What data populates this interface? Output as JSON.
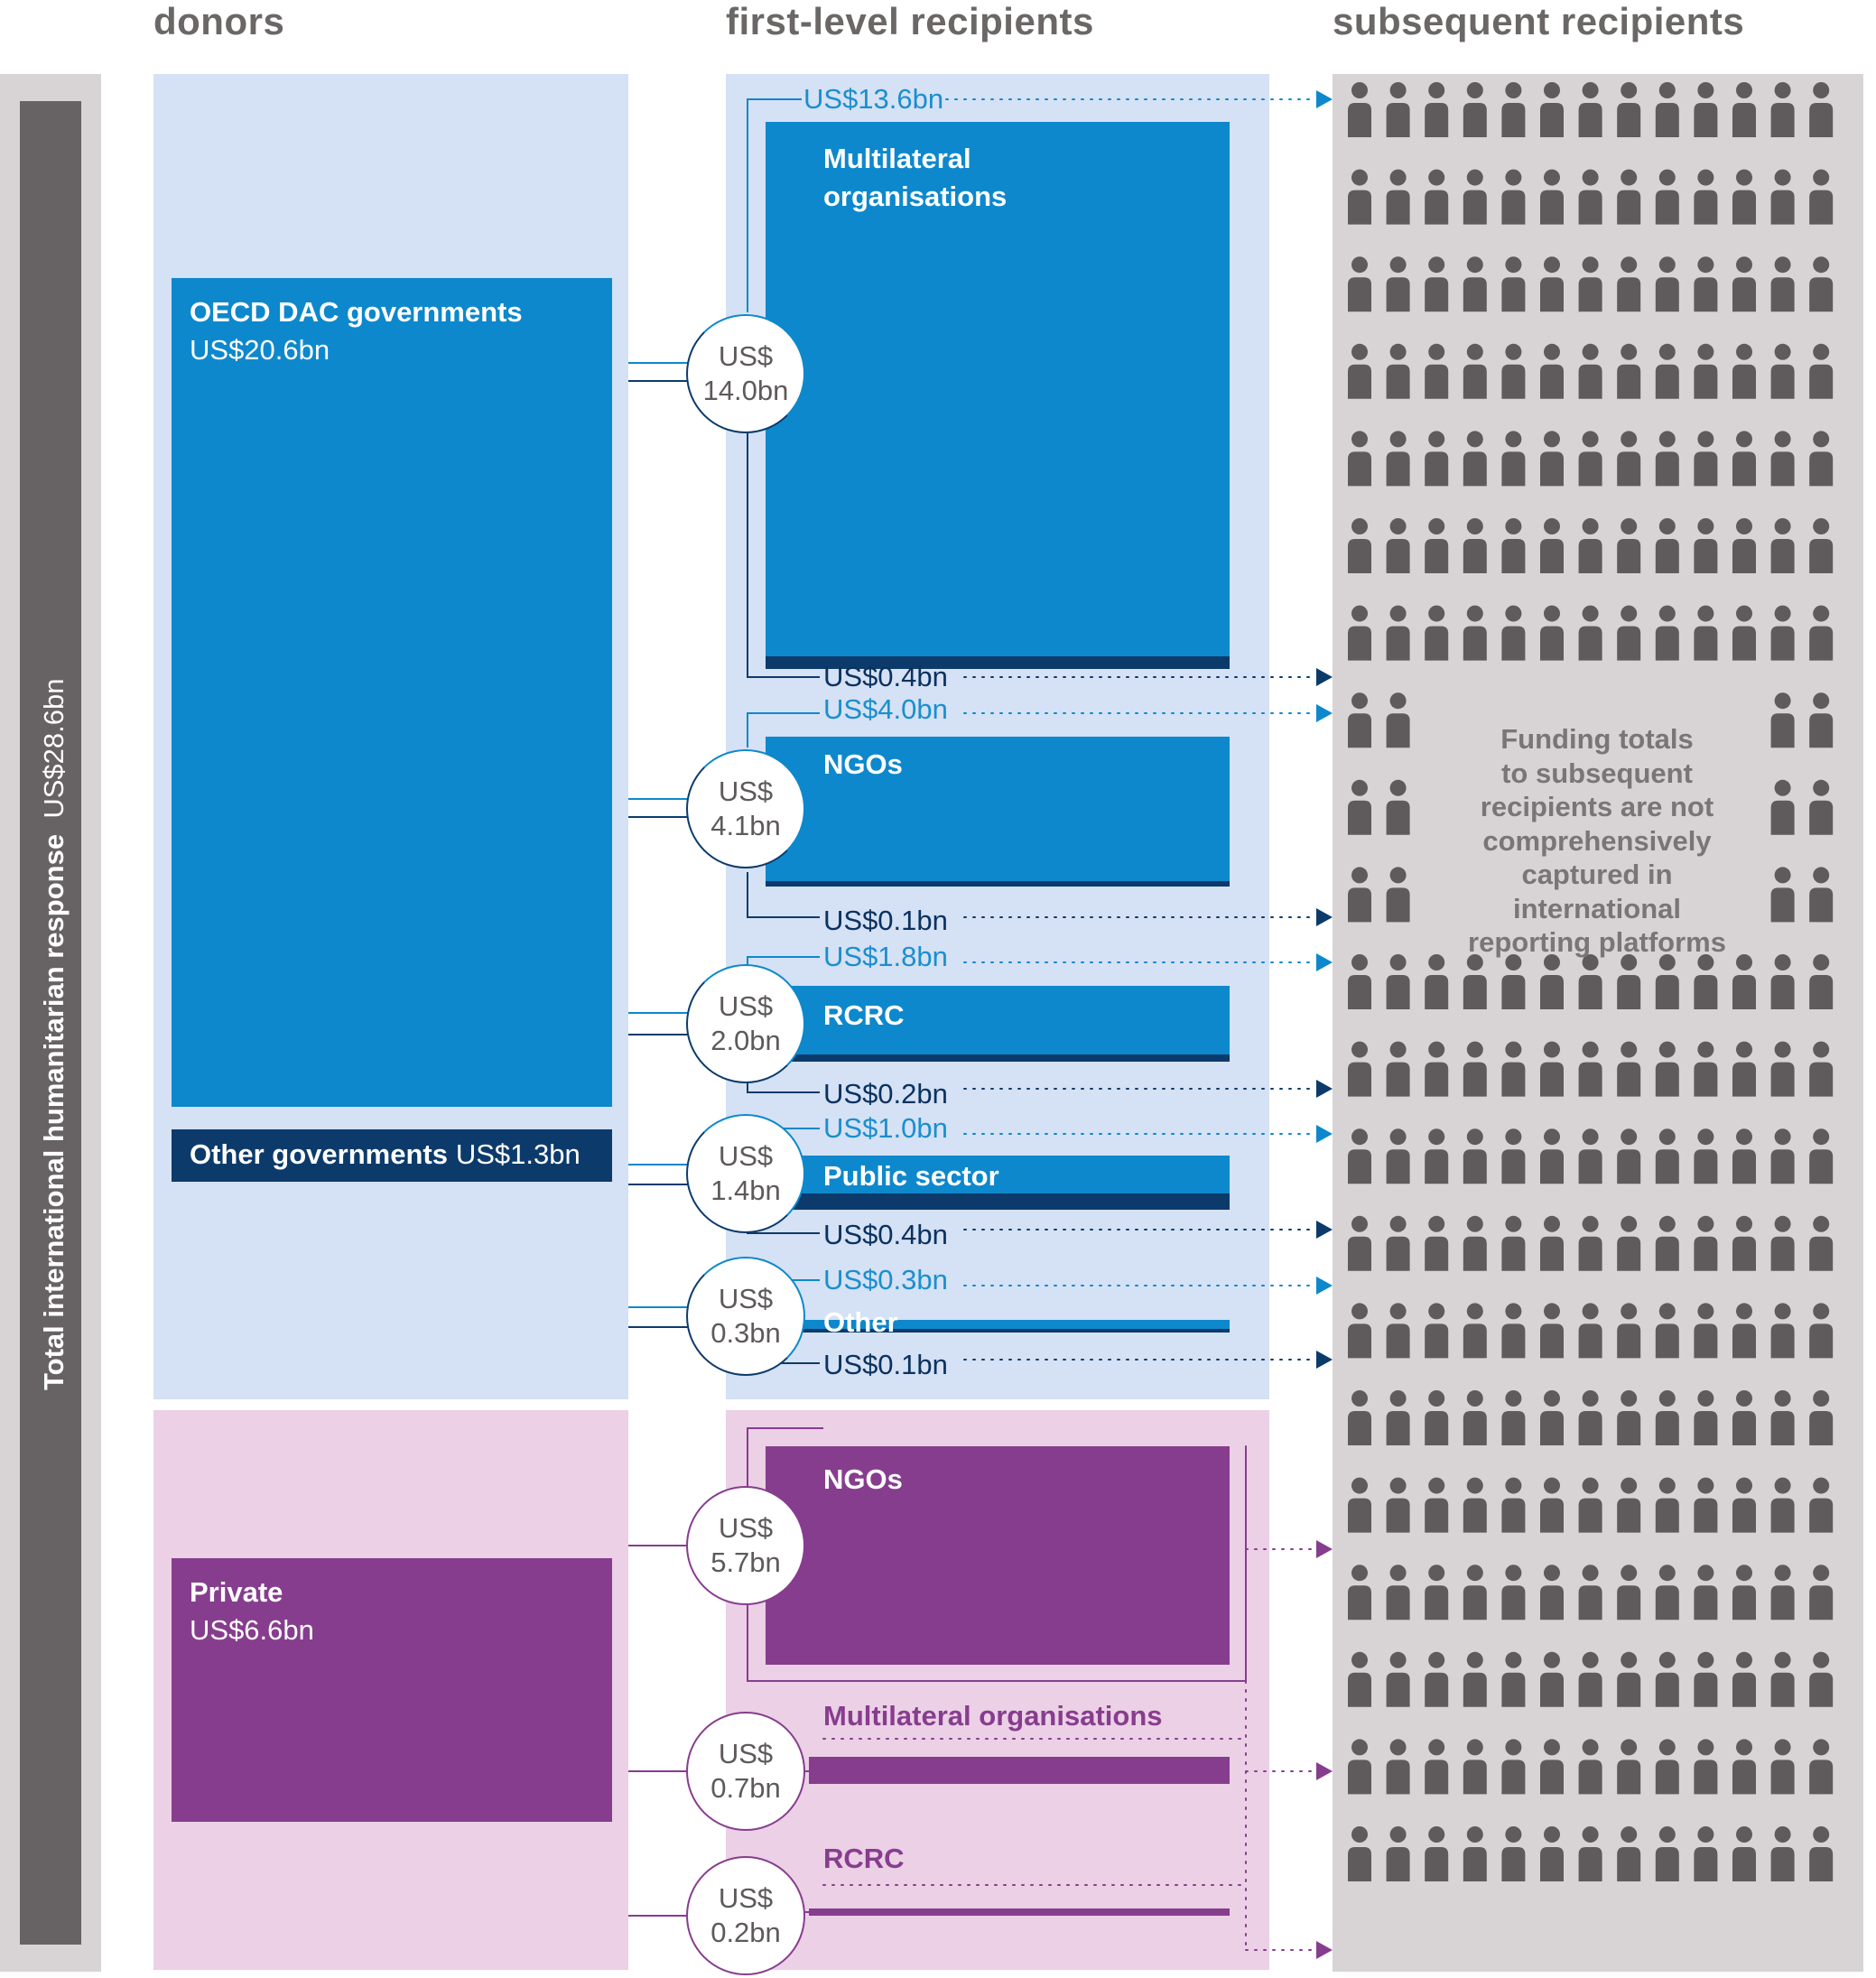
{
  "headers": {
    "donors": "donors",
    "first_level": "first-level recipients",
    "subsequent": "subsequent recipients"
  },
  "total": {
    "label": "Total international humanitarian response",
    "value": "US$28.6bn"
  },
  "donors": {
    "oecd": {
      "name": "OECD DAC governments",
      "value": "US$20.6bn"
    },
    "other_gov": {
      "name": "Other governments",
      "value": "US$1.3bn"
    },
    "private": {
      "name": "Private",
      "value": "US$6.6bn"
    }
  },
  "public_flows": {
    "multilateral": {
      "label": "Multilateral organisations",
      "circle_top": "US$",
      "circle_bottom": "14.0bn",
      "onward_light": "US$13.6bn",
      "onward_dark": "US$0.4bn"
    },
    "ngos": {
      "label": "NGOs",
      "circle_top": "US$",
      "circle_bottom": "4.1bn",
      "onward_light": "US$4.0bn",
      "onward_dark": "US$0.1bn"
    },
    "rcrc": {
      "label": "RCRC",
      "circle_top": "US$",
      "circle_bottom": "2.0bn",
      "onward_light": "US$1.8bn",
      "onward_dark": "US$0.2bn"
    },
    "public_sector": {
      "label": "Public sector",
      "circle_top": "US$",
      "circle_bottom": "1.4bn",
      "onward_light": "US$1.0bn",
      "onward_dark": "US$0.4bn"
    },
    "other": {
      "label": "Other",
      "circle_top": "US$",
      "circle_bottom": "0.3bn",
      "onward_light": "US$0.3bn",
      "onward_dark": "US$0.1bn"
    }
  },
  "private_flows": {
    "ngos": {
      "label": "NGOs",
      "circle_top": "US$",
      "circle_bottom": "5.7bn"
    },
    "multilateral": {
      "label": "Multilateral organisations",
      "circle_top": "US$",
      "circle_bottom": "0.7bn"
    },
    "rcrc": {
      "label": "RCRC",
      "circle_top": "US$",
      "circle_bottom": "0.2bn"
    }
  },
  "subsequent_note": {
    "lines": [
      "Funding totals",
      "to subsequent",
      "recipients are not",
      "comprehensively",
      "captured in",
      "international",
      "reporting platforms"
    ]
  },
  "colors": {
    "blue": "#0e88cc",
    "dark_blue": "#0c3b6b",
    "light_blue_bg": "#d5e1f4",
    "purple": "#873d8e",
    "light_purple_bg": "#ebd0e6",
    "grey_bg": "#d8d4d6",
    "person": "#5f5a5c",
    "total_bar": "#676264"
  },
  "icons": {
    "person": "person-icon",
    "arrow": "arrow-head-icon"
  }
}
